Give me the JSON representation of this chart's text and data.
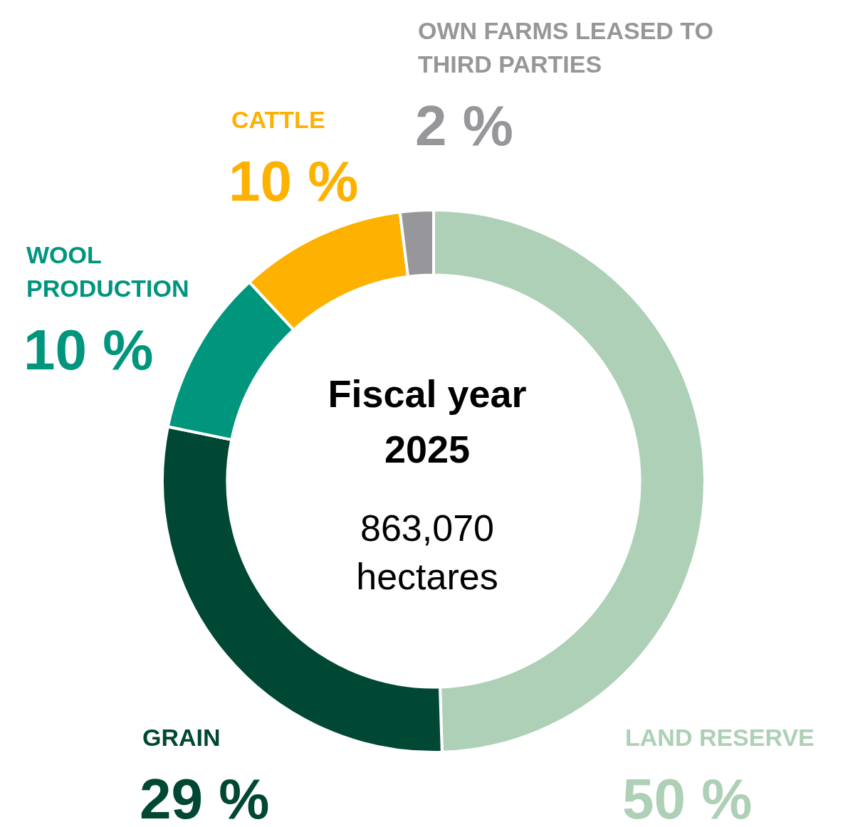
{
  "chart_data": {
    "type": "donut",
    "title": "Fiscal year 2025",
    "annotations": [
      "863,070 hectares"
    ],
    "categories": [
      "LAND RESERVE",
      "GRAIN",
      "WOOL PRODUCTION",
      "CATTLE",
      "OWN FARMS LEASED TO THIRD PARTIES"
    ],
    "values": [
      50,
      29,
      10,
      10,
      2
    ],
    "value_labels": [
      "50 %",
      "29 %",
      "10 %",
      "10 %",
      "2 %"
    ],
    "colors": [
      "#aed0b6",
      "#004833",
      "#00957d",
      "#fdb100",
      "#97979b"
    ],
    "legend": false
  }
}
